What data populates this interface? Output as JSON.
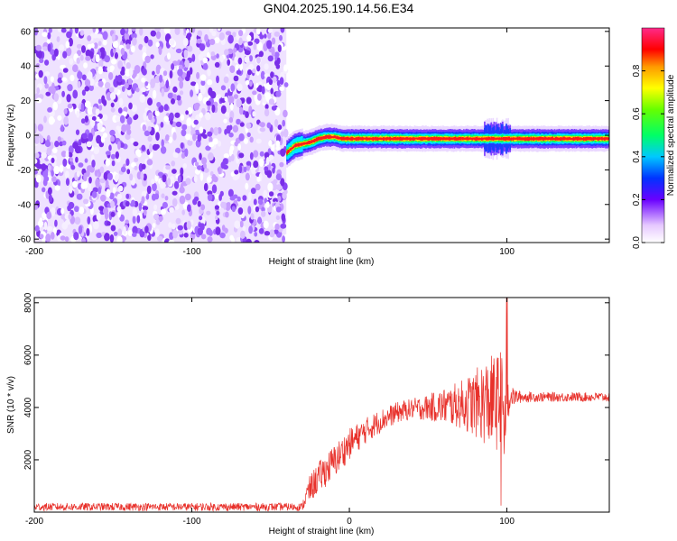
{
  "title": "GN04.2025.190.14.56.E34",
  "chart_data": [
    {
      "type": "heatmap",
      "xlabel": "Height of straight line (km)",
      "ylabel": "Frequency (Hz)",
      "xlim": [
        -200,
        165
      ],
      "ylim": [
        -62,
        62
      ],
      "xticks": [
        -200,
        -100,
        0,
        100
      ],
      "yticks": [
        60,
        40,
        20,
        0,
        -20,
        -40,
        -60
      ],
      "colorbar": {
        "label": "Normalized spectral amplitude",
        "range": [
          0,
          1
        ],
        "ticks": [
          "0.0",
          "0.2",
          "0.4",
          "0.6",
          "0.8"
        ]
      },
      "regions": [
        {
          "x_start": -200,
          "x_end": -40,
          "pattern": "broadband noise, low-mid amplitude across all frequencies"
        },
        {
          "x_start": -40,
          "x_end": 165,
          "pattern": "narrow carrier near 0 Hz, peak amplitude ~1.0"
        }
      ],
      "carrier_track": {
        "x": [
          -40,
          -35,
          -30,
          -25,
          -20,
          -15,
          -10,
          -5,
          0,
          20,
          50,
          80,
          100,
          130,
          165
        ],
        "freq": [
          -10,
          -6,
          -5,
          -4,
          -2,
          -1,
          -1,
          -2,
          -2,
          -2,
          -2,
          -2,
          -2,
          -2,
          -2
        ]
      }
    },
    {
      "type": "line",
      "xlabel": "Height of straight line (km)",
      "ylabel": "SNR (10 * v/v)",
      "xlim": [
        -200,
        165
      ],
      "ylim": [
        0,
        8200
      ],
      "xticks": [
        -200,
        -100,
        0,
        100
      ],
      "yticks": [
        2000,
        4000,
        6000,
        8000
      ],
      "color": "#e8312b",
      "envelope": {
        "x": [
          -200,
          -110,
          -60,
          -30,
          -26,
          -20,
          -10,
          0,
          10,
          20,
          30,
          40,
          50,
          60,
          70,
          80,
          85,
          90,
          95,
          98,
          100,
          102,
          110,
          130,
          150,
          165
        ],
        "mean": [
          200,
          200,
          200,
          200,
          800,
          1300,
          1900,
          2600,
          3100,
          3500,
          3800,
          3950,
          4000,
          4050,
          4100,
          4150,
          4200,
          4200,
          4200,
          4250,
          4300,
          4400,
          4400,
          4400,
          4400,
          4400
        ],
        "spread": [
          150,
          150,
          150,
          150,
          500,
          600,
          650,
          600,
          500,
          450,
          400,
          400,
          500,
          700,
          900,
          1300,
          1600,
          1800,
          1900,
          2600,
          1500,
          400,
          200,
          180,
          180,
          180
        ]
      }
    }
  ]
}
